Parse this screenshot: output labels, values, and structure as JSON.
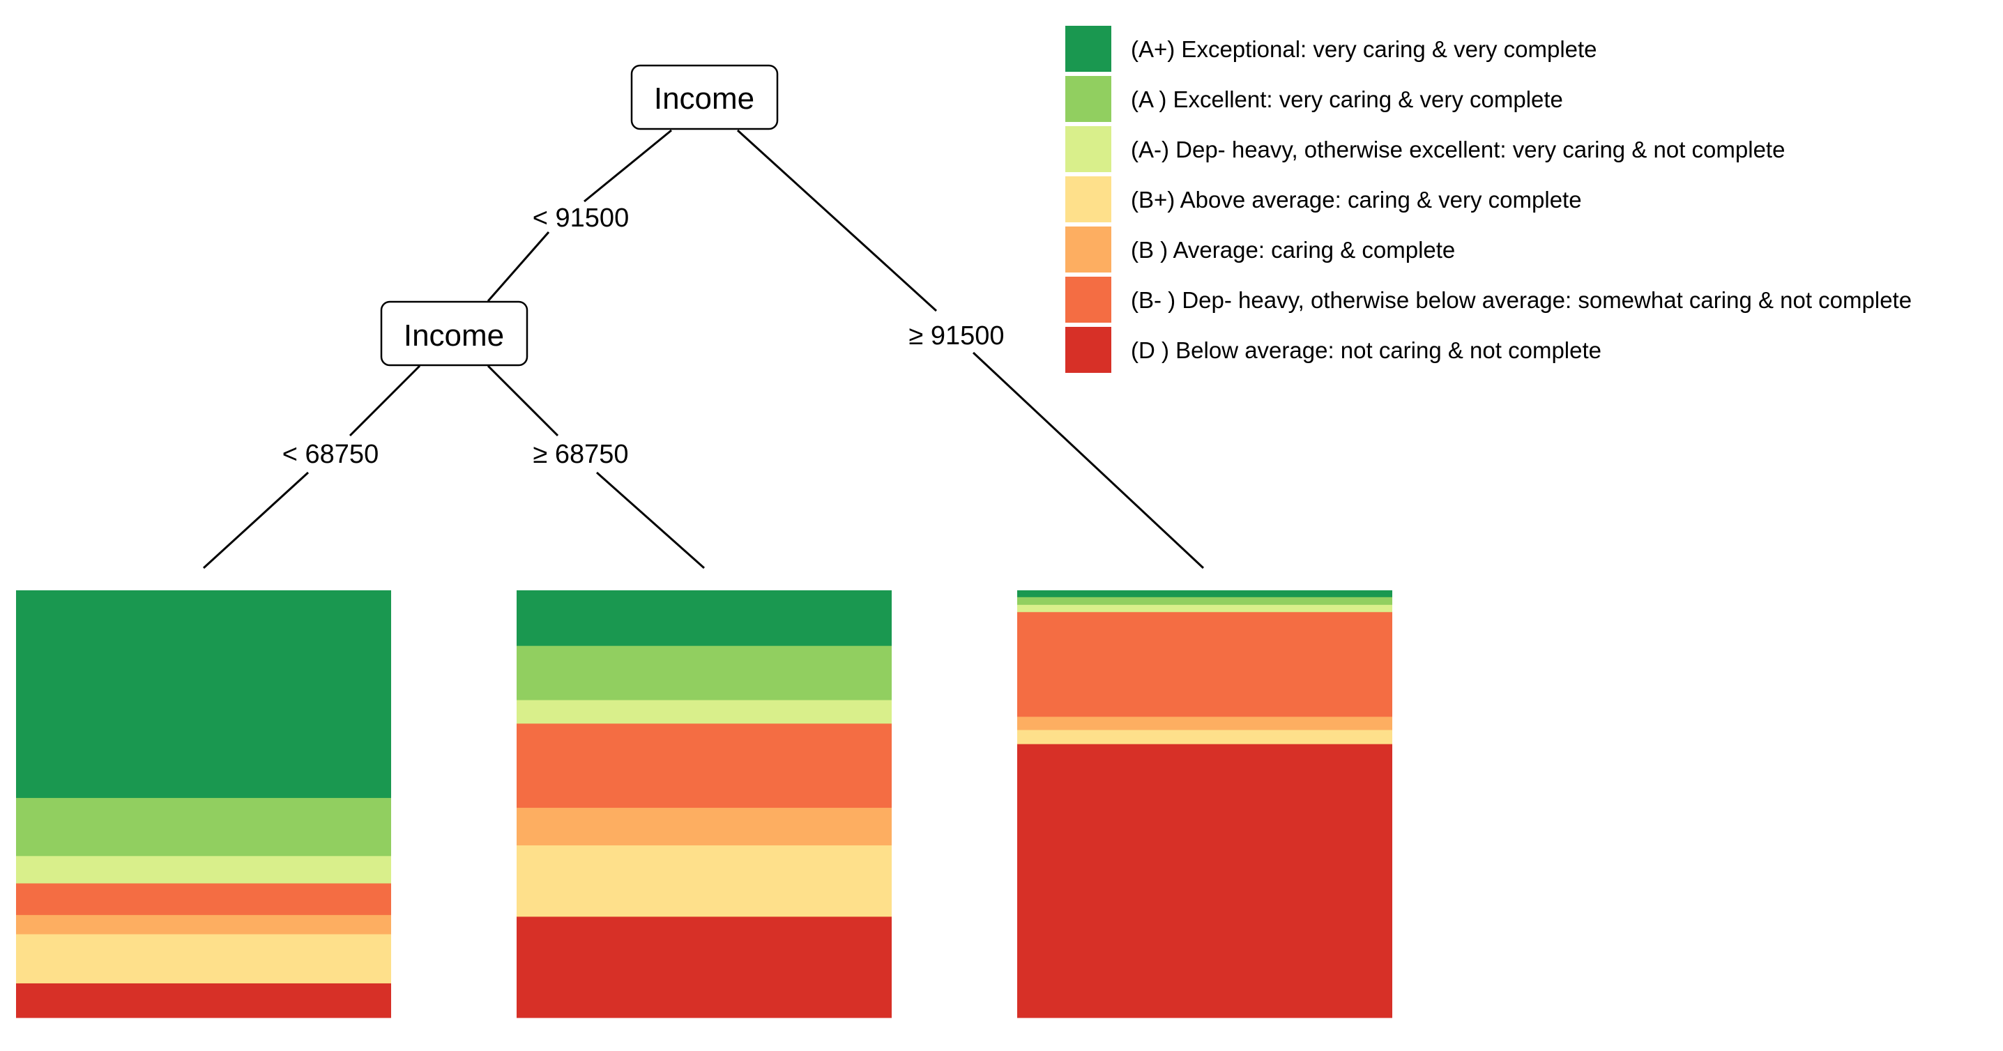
{
  "tree": {
    "nodes": {
      "root": {
        "label": "Income"
      },
      "left": {
        "label": "Income"
      }
    },
    "edges": {
      "root_left": {
        "label": "< 91500"
      },
      "root_right": {
        "label": "≥ 91500"
      },
      "left_left": {
        "label": "< 68750"
      },
      "left_right": {
        "label": "≥ 68750"
      }
    }
  },
  "legend": [
    {
      "code": "A+",
      "label": "(A+) Exceptional: very caring & very complete",
      "color": "#1a9850"
    },
    {
      "code": "A",
      "label": "(A ) Excellent: very caring & very complete",
      "color": "#91cf60"
    },
    {
      "code": "A-",
      "label": "(A-) Dep- heavy, otherwise excellent: very caring & not complete",
      "color": "#d9ef8b"
    },
    {
      "code": "B+",
      "label": "(B+) Above average: caring & very complete",
      "color": "#fee08b"
    },
    {
      "code": "B",
      "label": "(B ) Average: caring & complete",
      "color": "#fdae61"
    },
    {
      "code": "B-",
      "label": "(B- ) Dep- heavy, otherwise below average: somewhat caring & not complete",
      "color": "#f46d43"
    },
    {
      "code": "D",
      "label": "(D ) Below average: not caring & not complete",
      "color": "#d73027"
    }
  ],
  "chart_data": {
    "type": "stacked-bar",
    "unit": "proportion",
    "leaves": [
      {
        "id": "income_lt_68750",
        "segments": [
          {
            "code": "A+",
            "value": 0.486
          },
          {
            "code": "A",
            "value": 0.136
          },
          {
            "code": "A-",
            "value": 0.064
          },
          {
            "code": "B-",
            "value": 0.074
          },
          {
            "code": "B",
            "value": 0.045
          },
          {
            "code": "B+",
            "value": 0.115
          },
          {
            "code": "D",
            "value": 0.08
          }
        ]
      },
      {
        "id": "income_68750_to_91500",
        "segments": [
          {
            "code": "A+",
            "value": 0.13
          },
          {
            "code": "A",
            "value": 0.127
          },
          {
            "code": "A-",
            "value": 0.055
          },
          {
            "code": "B-",
            "value": 0.197
          },
          {
            "code": "B",
            "value": 0.088
          },
          {
            "code": "B+",
            "value": 0.167
          },
          {
            "code": "D",
            "value": 0.236
          }
        ]
      },
      {
        "id": "income_ge_91500",
        "segments": [
          {
            "code": "A+",
            "value": 0.016
          },
          {
            "code": "A",
            "value": 0.018
          },
          {
            "code": "A-",
            "value": 0.017
          },
          {
            "code": "B-",
            "value": 0.245
          },
          {
            "code": "B",
            "value": 0.031
          },
          {
            "code": "B+",
            "value": 0.033
          },
          {
            "code": "D",
            "value": 0.64
          }
        ]
      }
    ]
  }
}
